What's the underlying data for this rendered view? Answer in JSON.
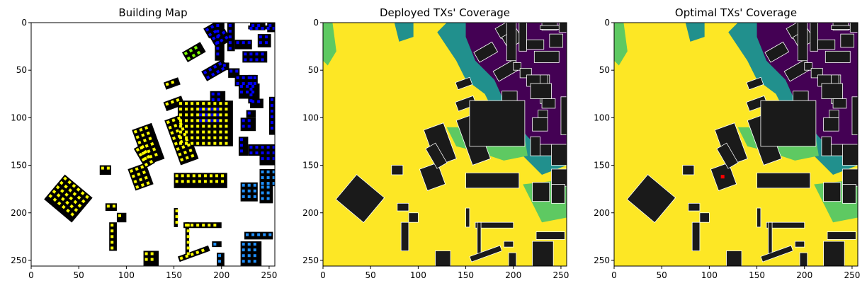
{
  "chart_data": [
    {
      "type": "heatmap",
      "title": "Building Map",
      "xticks": [
        0,
        50,
        100,
        150,
        200,
        250
      ],
      "yticks": [
        0,
        50,
        100,
        150,
        200,
        250
      ],
      "xlim": [
        0,
        256
      ],
      "ylim": [
        256,
        0
      ],
      "background": "#ffffff",
      "building_color": "#000000",
      "tx_marker_colors": [
        "#ffff00",
        "#7cfc00",
        "#00bfff",
        "#1e90ff",
        "#0000ff"
      ]
    },
    {
      "type": "heatmap",
      "title": "Deployed TXs' Coverage",
      "xticks": [
        0,
        50,
        100,
        150,
        200,
        250
      ],
      "yticks": [
        0,
        50,
        100,
        150,
        200,
        250
      ],
      "xlim": [
        0,
        256
      ],
      "ylim": [
        256,
        0
      ],
      "colormap": [
        "#440154",
        "#21908d",
        "#5ec962",
        "#fde725"
      ],
      "building_color": "#1a1a1a"
    },
    {
      "type": "heatmap",
      "title": "Optimal TXs' Coverage",
      "xticks": [
        0,
        50,
        100,
        150,
        200,
        250
      ],
      "yticks": [
        0,
        50,
        100,
        150,
        200,
        250
      ],
      "xlim": [
        0,
        256
      ],
      "ylim": [
        256,
        0
      ],
      "colormap": [
        "#440154",
        "#21908d",
        "#5ec962",
        "#fde725"
      ],
      "building_color": "#1a1a1a",
      "tx_marker_color": "#ff0000"
    }
  ]
}
